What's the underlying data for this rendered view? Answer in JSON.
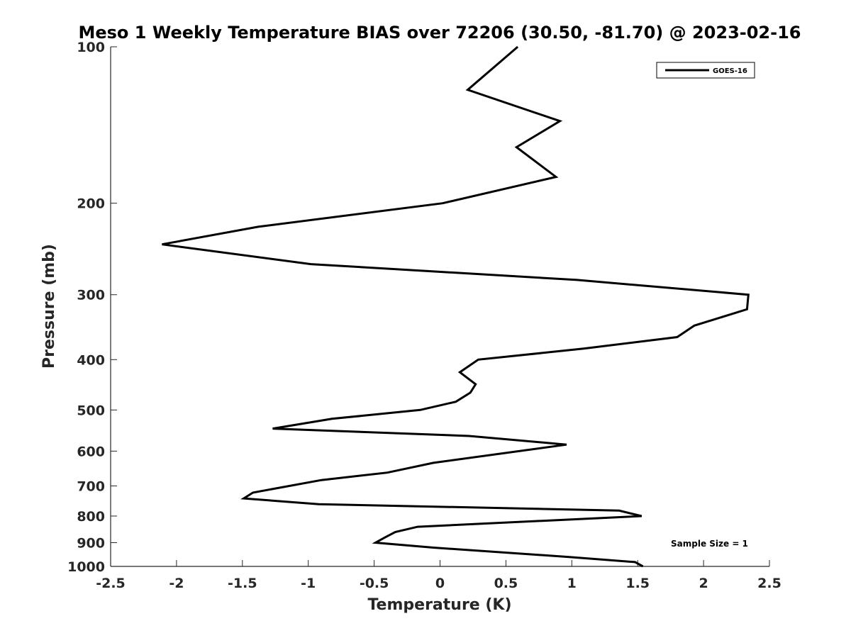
{
  "chart_data": {
    "type": "line",
    "title": "Meso 1 Weekly Temperature BIAS over 72206 (30.50, -81.70) @ 2023-02-16",
    "xlabel": "Temperature (K)",
    "ylabel": "Pressure (mb)",
    "xlim": [
      -2.5,
      2.5
    ],
    "ylim": [
      100,
      1000
    ],
    "y_scale": "log",
    "y_reversed": true,
    "grid": false,
    "legend_position": "top-right",
    "x_ticks": [
      -2.5,
      -2,
      -1.5,
      -1,
      -0.5,
      0,
      0.5,
      1,
      1.5,
      2,
      2.5
    ],
    "x_tick_labels": [
      "-2.5",
      "-2",
      "-1.5",
      "-1",
      "-0.5",
      "0",
      "0.5",
      "1",
      "1.5",
      "2",
      "2.5"
    ],
    "y_ticks": [
      100,
      200,
      300,
      400,
      500,
      600,
      700,
      800,
      900,
      1000
    ],
    "y_tick_labels": [
      "100",
      "200",
      "300",
      "400",
      "500",
      "600",
      "700",
      "800",
      "900",
      "1000"
    ],
    "series": [
      {
        "name": "GOES-16",
        "color": "#000000",
        "points": [
          {
            "x": 0.59,
            "y": 100
          },
          {
            "x": 0.21,
            "y": 121
          },
          {
            "x": 0.91,
            "y": 139
          },
          {
            "x": 0.58,
            "y": 156
          },
          {
            "x": 0.88,
            "y": 178
          },
          {
            "x": 0.02,
            "y": 200
          },
          {
            "x": -1.38,
            "y": 222
          },
          {
            "x": -2.11,
            "y": 240
          },
          {
            "x": -0.98,
            "y": 262
          },
          {
            "x": 1.04,
            "y": 281
          },
          {
            "x": 2.34,
            "y": 300
          },
          {
            "x": 2.33,
            "y": 320
          },
          {
            "x": 1.93,
            "y": 344
          },
          {
            "x": 1.8,
            "y": 362
          },
          {
            "x": 1.09,
            "y": 381
          },
          {
            "x": 0.29,
            "y": 400
          },
          {
            "x": 0.15,
            "y": 423
          },
          {
            "x": 0.27,
            "y": 446
          },
          {
            "x": 0.23,
            "y": 463
          },
          {
            "x": 0.12,
            "y": 482
          },
          {
            "x": -0.15,
            "y": 500
          },
          {
            "x": -0.82,
            "y": 520
          },
          {
            "x": -1.27,
            "y": 543
          },
          {
            "x": 0.22,
            "y": 561
          },
          {
            "x": 0.96,
            "y": 583
          },
          {
            "x": -0.05,
            "y": 632
          },
          {
            "x": -0.4,
            "y": 660
          },
          {
            "x": -0.9,
            "y": 682
          },
          {
            "x": -1.42,
            "y": 721
          },
          {
            "x": -1.49,
            "y": 740
          },
          {
            "x": -0.92,
            "y": 759
          },
          {
            "x": 1.36,
            "y": 781
          },
          {
            "x": 1.53,
            "y": 800
          },
          {
            "x": -0.17,
            "y": 839
          },
          {
            "x": -0.34,
            "y": 859
          },
          {
            "x": -0.42,
            "y": 880
          },
          {
            "x": -0.49,
            "y": 900
          },
          {
            "x": -0.05,
            "y": 920
          },
          {
            "x": 0.98,
            "y": 959
          },
          {
            "x": 1.48,
            "y": 981
          },
          {
            "x": 1.54,
            "y": 1000
          }
        ]
      }
    ],
    "annotation": "Sample Size = 1"
  }
}
